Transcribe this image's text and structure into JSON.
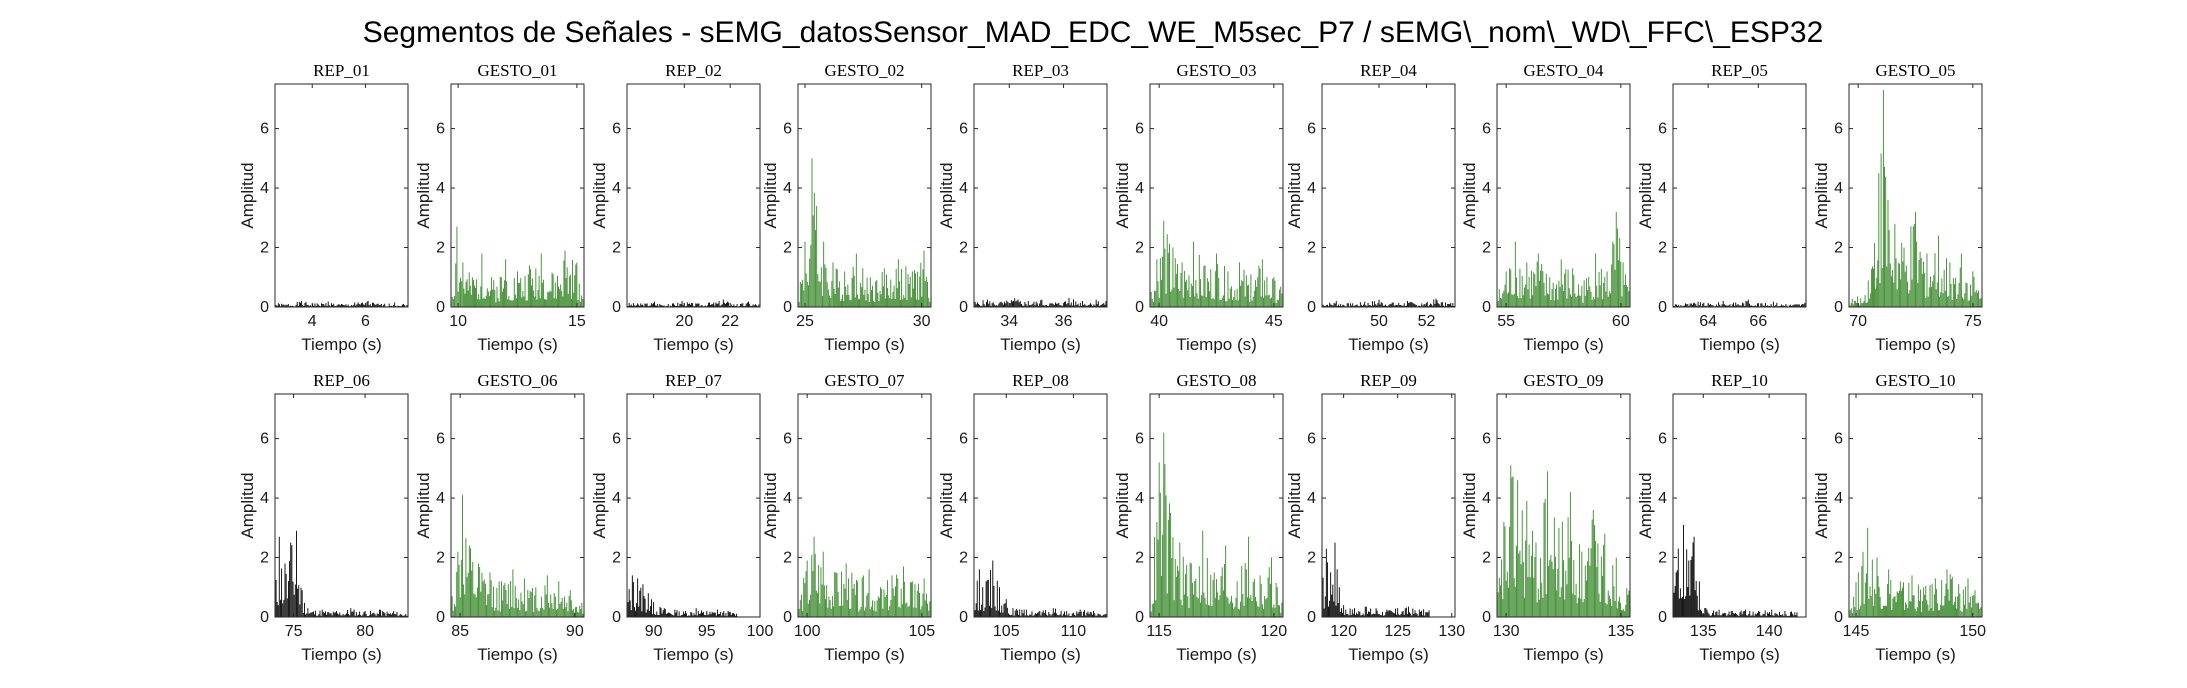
{
  "figure": {
    "title": "Segmentos de Señales - sEMG_datosSensor_MAD_EDC_WE_M5sec_P7 / sEMG\\_nom\\_WD\\_FFC\\_ESP32"
  },
  "colors": {
    "rep": "#000000",
    "gesto": "#3a8a2c",
    "axis": "#262626"
  },
  "chart_data": [
    {
      "type": "line",
      "title": "REP_01",
      "xlabel": "Tiempo (s)",
      "ylabel": "Amplitud",
      "xlim": [
        2.6,
        7.6
      ],
      "ylim": [
        0,
        7.5
      ],
      "xticks": [
        4,
        6
      ],
      "yticks": [
        0,
        2,
        4,
        6
      ],
      "series": [
        {
          "name": "REP_01",
          "color": "#000000",
          "x": [
            2.6,
            3.1,
            3.6,
            4.1,
            4.6,
            5.1,
            5.6,
            6.1,
            6.6,
            7.1,
            7.6
          ],
          "y": [
            0.15,
            0.1,
            0.2,
            0.12,
            0.18,
            0.1,
            0.15,
            0.2,
            0.1,
            0.15,
            0.12
          ]
        }
      ]
    },
    {
      "type": "line",
      "title": "GESTO_01",
      "xlabel": "Tiempo (s)",
      "ylabel": "Amplitud",
      "xlim": [
        9.7,
        15.3
      ],
      "ylim": [
        0,
        7.5
      ],
      "xticks": [
        10,
        15
      ],
      "yticks": [
        0,
        2,
        4,
        6
      ],
      "series": [
        {
          "name": "GESTO_01",
          "color": "#3a8a2c",
          "x": [
            9.7,
            9.95,
            10.2,
            10.6,
            11.0,
            11.5,
            12.0,
            12.5,
            13.0,
            13.5,
            14.0,
            14.5,
            15.0,
            15.3
          ],
          "y": [
            0.6,
            2.7,
            1.5,
            1.0,
            1.8,
            0.9,
            1.6,
            1.2,
            1.4,
            1.8,
            1.1,
            1.9,
            1.5,
            0.8
          ]
        }
      ]
    },
    {
      "type": "line",
      "title": "REP_02",
      "xlabel": "Tiempo (s)",
      "ylabel": "Amplitud",
      "xlim": [
        17.5,
        23.3
      ],
      "ylim": [
        0,
        7.5
      ],
      "xticks": [
        20,
        22
      ],
      "yticks": [
        0,
        2,
        4,
        6
      ],
      "series": [
        {
          "name": "REP_02",
          "color": "#000000",
          "x": [
            17.5,
            18.1,
            18.7,
            19.3,
            19.9,
            20.5,
            21.1,
            21.7,
            22.3,
            22.8,
            23.3
          ],
          "y": [
            0.15,
            0.12,
            0.18,
            0.1,
            0.2,
            0.12,
            0.15,
            0.25,
            0.1,
            0.18,
            0.12
          ]
        }
      ]
    },
    {
      "type": "line",
      "title": "GESTO_02",
      "xlabel": "Tiempo (s)",
      "ylabel": "Amplitud",
      "xlim": [
        24.7,
        30.4
      ],
      "ylim": [
        0,
        7.5
      ],
      "xticks": [
        25,
        30
      ],
      "yticks": [
        0,
        2,
        4,
        6
      ],
      "series": [
        {
          "name": "GESTO_02",
          "color": "#3a8a2c",
          "x": [
            24.7,
            25.0,
            25.3,
            25.5,
            25.8,
            26.2,
            26.7,
            27.2,
            27.8,
            28.4,
            29.0,
            29.6,
            30.1,
            30.4
          ],
          "y": [
            0.8,
            2.2,
            5.0,
            3.4,
            2.2,
            1.5,
            1.2,
            1.8,
            1.0,
            1.3,
            1.6,
            1.2,
            1.9,
            0.8
          ]
        }
      ]
    },
    {
      "type": "line",
      "title": "REP_03",
      "xlabel": "Tiempo (s)",
      "ylabel": "Amplitud",
      "xlim": [
        32.7,
        37.6
      ],
      "ylim": [
        0,
        7.5
      ],
      "xticks": [
        34,
        36
      ],
      "yticks": [
        0,
        2,
        4,
        6
      ],
      "series": [
        {
          "name": "REP_03",
          "color": "#000000",
          "x": [
            32.7,
            33.2,
            33.7,
            34.2,
            34.7,
            35.2,
            35.7,
            36.2,
            36.7,
            37.2,
            37.6
          ],
          "y": [
            0.2,
            0.25,
            0.18,
            0.3,
            0.2,
            0.25,
            0.15,
            0.3,
            0.2,
            0.25,
            0.2
          ]
        }
      ]
    },
    {
      "type": "line",
      "title": "GESTO_03",
      "xlabel": "Tiempo (s)",
      "ylabel": "Amplitud",
      "xlim": [
        39.6,
        45.4
      ],
      "ylim": [
        0,
        7.5
      ],
      "xticks": [
        40,
        45
      ],
      "yticks": [
        0,
        2,
        4,
        6
      ],
      "series": [
        {
          "name": "GESTO_03",
          "color": "#3a8a2c",
          "x": [
            39.6,
            39.9,
            40.2,
            40.6,
            41.0,
            41.5,
            42.0,
            42.5,
            43.0,
            43.5,
            44.0,
            44.5,
            45.0,
            45.4
          ],
          "y": [
            0.6,
            1.6,
            2.9,
            2.0,
            1.5,
            2.2,
            1.4,
            1.8,
            1.2,
            1.5,
            1.1,
            1.6,
            1.0,
            0.6
          ]
        }
      ]
    },
    {
      "type": "line",
      "title": "REP_04",
      "xlabel": "Tiempo (s)",
      "ylabel": "Amplitud",
      "xlim": [
        47.6,
        53.2
      ],
      "ylim": [
        0,
        7.5
      ],
      "xticks": [
        50,
        52
      ],
      "yticks": [
        0,
        2,
        4,
        6
      ],
      "series": [
        {
          "name": "REP_04",
          "color": "#000000",
          "x": [
            47.6,
            48.2,
            48.8,
            49.4,
            50.0,
            50.6,
            51.2,
            51.8,
            52.4,
            52.8,
            53.2
          ],
          "y": [
            0.15,
            0.2,
            0.12,
            0.18,
            0.25,
            0.15,
            0.2,
            0.12,
            0.28,
            0.15,
            0.18
          ]
        }
      ]
    },
    {
      "type": "line",
      "title": "GESTO_04",
      "xlabel": "Tiempo (s)",
      "ylabel": "Amplitud",
      "xlim": [
        54.6,
        60.4
      ],
      "ylim": [
        0,
        7.5
      ],
      "xticks": [
        55,
        60
      ],
      "yticks": [
        0,
        2,
        4,
        6
      ],
      "series": [
        {
          "name": "GESTO_04",
          "color": "#3a8a2c",
          "x": [
            54.6,
            55.0,
            55.4,
            55.9,
            56.4,
            56.9,
            57.4,
            57.9,
            58.4,
            58.9,
            59.4,
            59.8,
            60.1,
            60.4
          ],
          "y": [
            0.5,
            1.2,
            2.2,
            1.5,
            1.8,
            1.0,
            1.6,
            1.3,
            0.9,
            1.8,
            1.2,
            3.2,
            1.5,
            0.6
          ]
        }
      ]
    },
    {
      "type": "line",
      "title": "REP_05",
      "xlabel": "Tiempo (s)",
      "ylabel": "Amplitud",
      "xlim": [
        62.6,
        67.9
      ],
      "ylim": [
        0,
        7.5
      ],
      "xticks": [
        64,
        66
      ],
      "yticks": [
        0,
        2,
        4,
        6
      ],
      "series": [
        {
          "name": "REP_05",
          "color": "#000000",
          "x": [
            62.6,
            63.1,
            63.6,
            64.1,
            64.6,
            65.1,
            65.6,
            66.1,
            66.6,
            67.1,
            67.9
          ],
          "y": [
            0.15,
            0.12,
            0.18,
            0.1,
            0.2,
            0.15,
            0.25,
            0.12,
            0.18,
            0.1,
            0.15
          ]
        }
      ]
    },
    {
      "type": "line",
      "title": "GESTO_05",
      "xlabel": "Tiempo (s)",
      "ylabel": "Amplitud",
      "xlim": [
        69.6,
        75.4
      ],
      "ylim": [
        0,
        7.5
      ],
      "xticks": [
        70,
        75
      ],
      "yticks": [
        0,
        2,
        4,
        6
      ],
      "series": [
        {
          "name": "GESTO_05",
          "color": "#3a8a2c",
          "x": [
            69.6,
            70.3,
            70.9,
            71.1,
            71.3,
            71.6,
            72.0,
            72.5,
            73.0,
            73.5,
            74.0,
            74.5,
            75.0,
            75.4
          ],
          "y": [
            0.3,
            0.4,
            4.5,
            7.3,
            3.6,
            2.8,
            2.0,
            3.2,
            1.8,
            2.4,
            1.5,
            1.8,
            1.2,
            0.5
          ]
        }
      ]
    },
    {
      "type": "line",
      "title": "REP_06",
      "xlabel": "Tiempo (s)",
      "ylabel": "Amplitud",
      "xlim": [
        73.7,
        83.0
      ],
      "ylim": [
        0,
        7.5
      ],
      "xticks": [
        75,
        80
      ],
      "yticks": [
        0,
        2,
        4,
        6
      ],
      "series": [
        {
          "name": "REP_06",
          "color": "#000000",
          "x": [
            73.7,
            74.0,
            74.4,
            74.8,
            75.2,
            75.6,
            76.0,
            77.0,
            78.0,
            79.0,
            80.0,
            81.0,
            82.0,
            83.0
          ],
          "y": [
            1.0,
            2.7,
            1.8,
            2.5,
            2.9,
            0.9,
            0.3,
            0.25,
            0.2,
            0.3,
            0.2,
            0.25,
            0.2,
            0.15
          ]
        }
      ]
    },
    {
      "type": "line",
      "title": "GESTO_06",
      "xlabel": "Tiempo (s)",
      "ylabel": "Amplitud",
      "xlim": [
        84.6,
        90.4
      ],
      "ylim": [
        0,
        7.5
      ],
      "xticks": [
        85,
        90
      ],
      "yticks": [
        0,
        2,
        4,
        6
      ],
      "series": [
        {
          "name": "GESTO_06",
          "color": "#3a8a2c",
          "x": [
            84.6,
            84.9,
            85.1,
            85.4,
            85.8,
            86.3,
            86.8,
            87.3,
            87.8,
            88.3,
            88.8,
            89.3,
            89.8,
            90.4
          ],
          "y": [
            0.8,
            2.2,
            4.1,
            2.4,
            1.8,
            1.5,
            1.2,
            1.6,
            1.3,
            1.0,
            1.4,
            1.2,
            0.9,
            0.6
          ]
        }
      ]
    },
    {
      "type": "line",
      "title": "REP_07",
      "xlabel": "Tiempo (s)",
      "ylabel": "Amplitud",
      "xlim": [
        87.5,
        100
      ],
      "ylim": [
        0,
        7.5
      ],
      "xticks": [
        90,
        95,
        100
      ],
      "yticks": [
        0,
        2,
        4,
        6
      ],
      "series": [
        {
          "name": "REP_07",
          "color": "#000000",
          "x": [
            87.5,
            88.0,
            88.5,
            89.0,
            89.5,
            90.0,
            91.0,
            92.0,
            93.0,
            94.0,
            95.0,
            96.0,
            97.0,
            98.0
          ],
          "y": [
            0.9,
            1.4,
            1.3,
            1.1,
            0.8,
            0.5,
            0.3,
            0.25,
            0.2,
            0.3,
            0.2,
            0.25,
            0.2,
            0.15
          ]
        }
      ]
    },
    {
      "type": "line",
      "title": "GESTO_07",
      "xlabel": "Tiempo (s)",
      "ylabel": "Amplitud",
      "xlim": [
        99.6,
        105.4
      ],
      "ylim": [
        0,
        7.5
      ],
      "xticks": [
        100,
        105
      ],
      "yticks": [
        0,
        2,
        4,
        6
      ],
      "series": [
        {
          "name": "GESTO_07",
          "color": "#3a8a2c",
          "x": [
            99.6,
            100.0,
            100.3,
            100.7,
            101.2,
            101.7,
            102.2,
            102.7,
            103.2,
            103.7,
            104.2,
            104.7,
            105.1,
            105.4
          ],
          "y": [
            0.6,
            1.9,
            2.7,
            2.2,
            1.5,
            1.8,
            1.2,
            1.6,
            1.0,
            1.4,
            1.7,
            1.1,
            1.3,
            0.6
          ]
        }
      ]
    },
    {
      "type": "line",
      "title": "REP_08",
      "xlabel": "Tiempo (s)",
      "ylabel": "Amplitud",
      "xlim": [
        102.6,
        112.5
      ],
      "ylim": [
        0,
        7.5
      ],
      "xticks": [
        105,
        110
      ],
      "yticks": [
        0,
        2,
        4,
        6
      ],
      "series": [
        {
          "name": "REP_08",
          "color": "#000000",
          "x": [
            102.6,
            103.0,
            103.5,
            104.0,
            104.5,
            105.0,
            105.5,
            106.5,
            107.5,
            108.5,
            109.5,
            110.5,
            111.5,
            112.5
          ],
          "y": [
            0.8,
            1.6,
            1.2,
            1.9,
            1.0,
            0.6,
            0.3,
            0.25,
            0.2,
            0.3,
            0.2,
            0.25,
            0.2,
            0.15
          ]
        }
      ]
    },
    {
      "type": "line",
      "title": "GESTO_08",
      "xlabel": "Tiempo (s)",
      "ylabel": "Amplitud",
      "xlim": [
        114.6,
        120.4
      ],
      "ylim": [
        0,
        7.5
      ],
      "xticks": [
        115,
        120
      ],
      "yticks": [
        0,
        2,
        4,
        6
      ],
      "series": [
        {
          "name": "GESTO_08",
          "color": "#3a8a2c",
          "x": [
            114.6,
            115.0,
            115.2,
            115.5,
            115.9,
            116.4,
            116.9,
            117.4,
            117.9,
            118.4,
            118.9,
            119.4,
            119.9,
            120.4
          ],
          "y": [
            0.5,
            5.2,
            6.2,
            3.5,
            2.5,
            1.8,
            2.9,
            1.5,
            2.4,
            1.2,
            2.7,
            1.4,
            2.0,
            0.5
          ]
        }
      ]
    },
    {
      "type": "line",
      "title": "REP_09",
      "xlabel": "Tiempo (s)",
      "ylabel": "Amplitud",
      "xlim": [
        118.0,
        130.3
      ],
      "ylim": [
        0,
        7.5
      ],
      "xticks": [
        120,
        125,
        130
      ],
      "yticks": [
        0,
        2,
        4,
        6
      ],
      "series": [
        {
          "name": "REP_09",
          "color": "#000000",
          "x": [
            118.0,
            118.4,
            118.8,
            119.2,
            119.6,
            120.0,
            121.0,
            122.0,
            123.0,
            124.0,
            125.0,
            126.0,
            127.0,
            128.0
          ],
          "y": [
            1.2,
            2.3,
            1.5,
            2.5,
            1.0,
            0.4,
            0.3,
            0.35,
            0.3,
            0.25,
            0.3,
            0.35,
            0.25,
            0.3
          ]
        }
      ]
    },
    {
      "type": "line",
      "title": "GESTO_09",
      "xlabel": "Tiempo (s)",
      "ylabel": "Amplitud",
      "xlim": [
        129.6,
        135.4
      ],
      "ylim": [
        0,
        7.5
      ],
      "xticks": [
        130,
        135
      ],
      "yticks": [
        0,
        2,
        4,
        6
      ],
      "series": [
        {
          "name": "GESTO_09",
          "color": "#3a8a2c",
          "x": [
            129.6,
            129.9,
            130.2,
            130.5,
            130.9,
            131.3,
            131.8,
            132.3,
            132.8,
            133.3,
            133.8,
            134.3,
            134.8,
            135.4
          ],
          "y": [
            0.8,
            3.2,
            5.1,
            4.6,
            3.9,
            2.5,
            4.9,
            3.0,
            4.2,
            2.2,
            3.6,
            2.8,
            2.0,
            0.8
          ]
        }
      ]
    },
    {
      "type": "line",
      "title": "REP_10",
      "xlabel": "Tiempo (s)",
      "ylabel": "Amplitud",
      "xlim": [
        132.7,
        142.8
      ],
      "ylim": [
        0,
        7.5
      ],
      "xticks": [
        135,
        140
      ],
      "yticks": [
        0,
        2,
        4,
        6
      ],
      "series": [
        {
          "name": "REP_10",
          "color": "#000000",
          "x": [
            132.7,
            133.1,
            133.5,
            133.9,
            134.3,
            134.7,
            135.2,
            136.2,
            137.2,
            138.2,
            139.2,
            140.2,
            141.2,
            142.2
          ],
          "y": [
            1.4,
            2.3,
            3.1,
            1.9,
            2.7,
            1.2,
            0.3,
            0.25,
            0.2,
            0.25,
            0.2,
            0.25,
            0.2,
            0.2
          ]
        }
      ]
    },
    {
      "type": "line",
      "title": "GESTO_10",
      "xlabel": "Tiempo (s)",
      "ylabel": "Amplitud",
      "xlim": [
        144.7,
        150.4
      ],
      "ylim": [
        0,
        7.5
      ],
      "xticks": [
        145,
        150
      ],
      "yticks": [
        0,
        2,
        4,
        6
      ],
      "series": [
        {
          "name": "GESTO_10",
          "color": "#3a8a2c",
          "x": [
            144.7,
            145.1,
            145.5,
            145.9,
            146.4,
            146.9,
            147.4,
            147.9,
            148.4,
            148.9,
            149.4,
            149.8,
            150.1,
            150.4
          ],
          "y": [
            0.5,
            1.5,
            3.0,
            2.0,
            1.6,
            1.2,
            1.4,
            1.0,
            1.3,
            1.6,
            1.1,
            1.3,
            0.9,
            0.5
          ]
        }
      ]
    }
  ]
}
